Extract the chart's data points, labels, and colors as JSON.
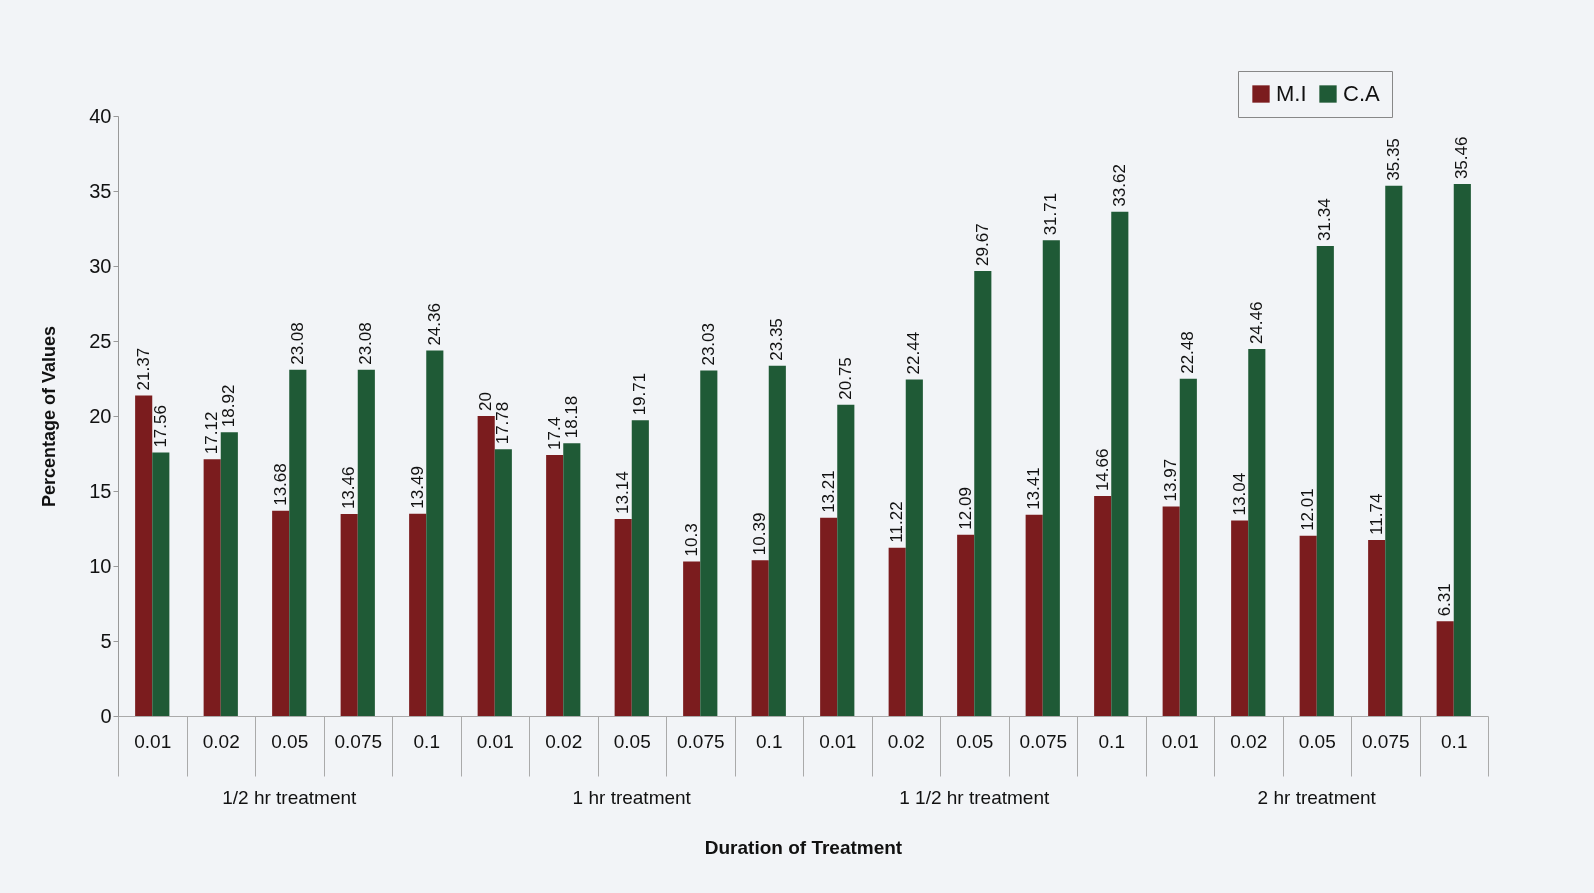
{
  "chart_data": {
    "type": "bar",
    "xlabel": "Duration of Treatment",
    "ylabel": "Percentage of Values",
    "categories": [
      "0.01",
      "0.02",
      "0.05",
      "0.075",
      "0.1",
      "0.01",
      "0.02",
      "0.05",
      "0.075",
      "0.1",
      "0.01",
      "0.02",
      "0.05",
      "0.075",
      "0.1",
      "0.01",
      "0.02",
      "0.05",
      "0.075",
      "0.1"
    ],
    "annotations": [
      "1/2 hr treatment",
      "1 hr treatment",
      "1 1/2 hr treatment",
      "2 hr treatment"
    ],
    "series": [
      {
        "name": "M.I",
        "color": "#7b1c1e",
        "values": [
          21.37,
          17.12,
          13.68,
          13.46,
          13.49,
          20,
          17.4,
          13.14,
          10.3,
          10.39,
          13.21,
          11.22,
          12.09,
          13.41,
          14.66,
          13.97,
          13.04,
          12.01,
          11.74,
          6.31
        ]
      },
      {
        "name": "C.A",
        "color": "#1f5a36",
        "values": [
          17.56,
          18.92,
          23.08,
          23.08,
          24.36,
          17.78,
          18.18,
          19.71,
          23.03,
          23.35,
          20.75,
          22.44,
          29.67,
          31.71,
          33.62,
          22.48,
          24.46,
          31.34,
          35.35,
          35.46
        ]
      }
    ],
    "ylim": [
      0,
      40
    ],
    "yticks": [
      0,
      5,
      10,
      15,
      20,
      25,
      30,
      35,
      40
    ],
    "data_labels": true,
    "legend": "top right",
    "grid": false
  }
}
